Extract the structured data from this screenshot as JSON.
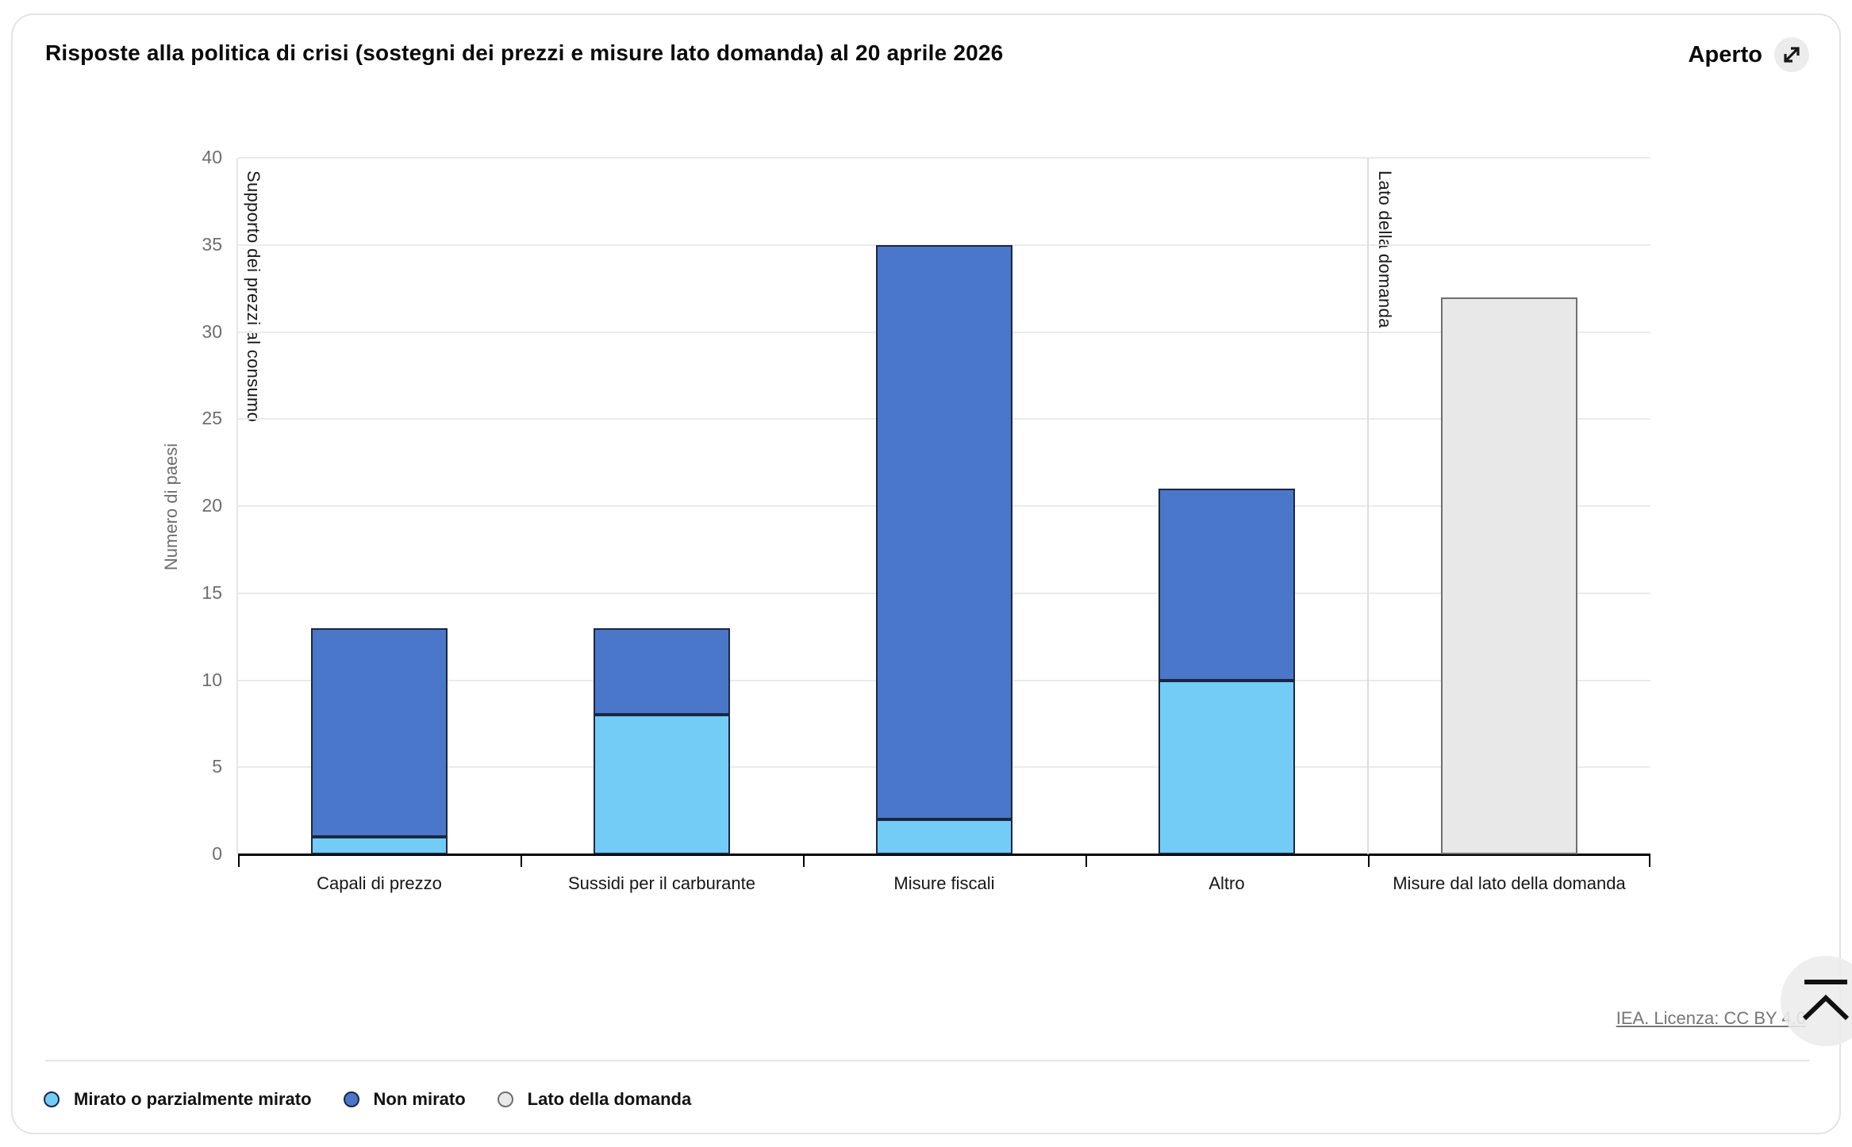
{
  "header": {
    "title": "Risposte alla politica di crisi (sostegni dei prezzi e misure lato domanda) al 20 aprile 2026",
    "open_button": {
      "label": "Aperto",
      "icon": "expand-diagonal-icon"
    }
  },
  "chart_data": {
    "type": "bar",
    "stacked": true,
    "title": "Risposte alla politica di crisi (sostegni dei prezzi e misure lato domanda) al 20 aprile 2026",
    "categories": [
      "Capali di prezzo",
      "Sussidi per il carburante",
      "Misure fiscali",
      "Altro",
      "Misure dal lato della domanda"
    ],
    "series": [
      {
        "name": "Mirato o parzialmente mirato",
        "color": "#73ccf6",
        "border_color": "#1b2742",
        "values": [
          1,
          8,
          2,
          10,
          0
        ]
      },
      {
        "name": "Non mirato",
        "color": "#4a77c9",
        "border_color": "#1b2742",
        "values": [
          12,
          5,
          33,
          11,
          0
        ]
      },
      {
        "name": "Lato della domanda",
        "color": "#e8e8e8",
        "border_color": "#6f6f6f",
        "values": [
          0,
          0,
          0,
          0,
          32
        ]
      }
    ],
    "totals_per_category": [
      13,
      13,
      35,
      21,
      32
    ],
    "xlabel": "",
    "ylabel": "Numero di paesi",
    "ylim": [
      0,
      40
    ],
    "yticks": [
      0,
      5,
      10,
      15,
      20,
      25,
      30,
      35,
      40
    ],
    "grid": "horizontal",
    "legend_position": "bottom",
    "annotations": [
      {
        "text": "Supporto dei prezzi al consumo",
        "section": "first-four-categories"
      },
      {
        "text": "Lato della domanda",
        "section": "last-category"
      }
    ],
    "section_divider_after_category_index": 4
  },
  "footer": {
    "license_link": "IEA. Licenza: CC BY 4.0"
  }
}
